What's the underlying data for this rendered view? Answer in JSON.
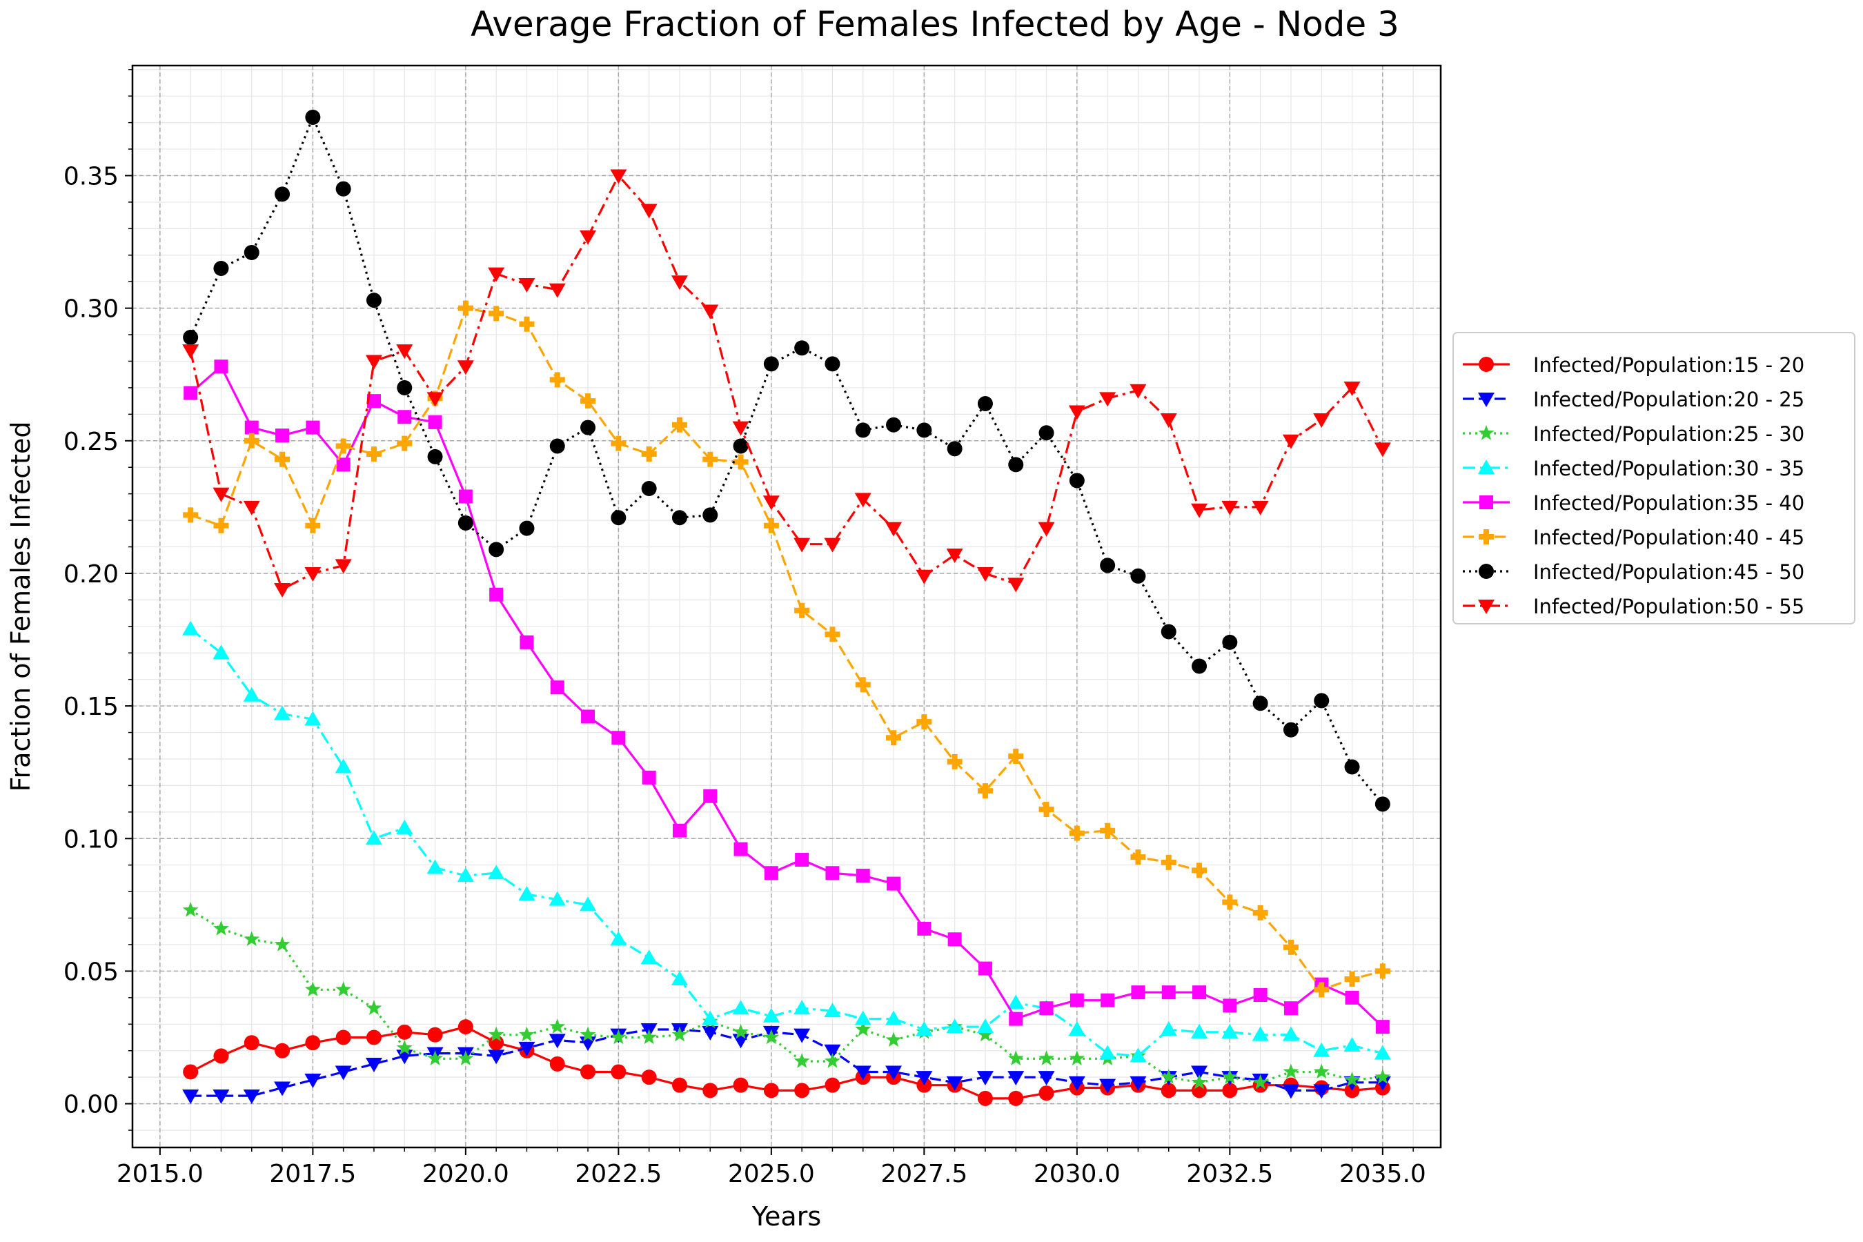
{
  "chart_data": {
    "type": "line",
    "title": "Average Fraction of Females Infected by Age - Node 3",
    "xlabel": "Years",
    "ylabel": "Fraction of Females Infected",
    "xlim": [
      2014.55,
      2035.95
    ],
    "ylim": [
      -0.0165,
      0.3915
    ],
    "xticks": [
      2015.0,
      2017.5,
      2020.0,
      2022.5,
      2025.0,
      2027.5,
      2030.0,
      2032.5,
      2035.0
    ],
    "xtick_labels": [
      "2015.0",
      "2017.5",
      "2020.0",
      "2022.5",
      "2025.0",
      "2027.5",
      "2030.0",
      "2032.5",
      "2035.0"
    ],
    "yticks": [
      0.0,
      0.05,
      0.1,
      0.15,
      0.2,
      0.25,
      0.3,
      0.35
    ],
    "ytick_labels": [
      "0.00",
      "0.05",
      "0.10",
      "0.15",
      "0.20",
      "0.25",
      "0.30",
      "0.35"
    ],
    "grid": true,
    "legend_position": "outside-right",
    "x": [
      2015.5,
      2016.0,
      2016.5,
      2017.0,
      2017.5,
      2018.0,
      2018.5,
      2019.0,
      2019.5,
      2020.0,
      2020.5,
      2021.0,
      2021.5,
      2022.0,
      2022.5,
      2023.0,
      2023.5,
      2024.0,
      2024.5,
      2025.0,
      2025.5,
      2026.0,
      2026.5,
      2027.0,
      2027.5,
      2028.0,
      2028.5,
      2029.0,
      2029.5,
      2030.0,
      2030.5,
      2031.0,
      2031.5,
      2032.0,
      2032.5,
      2033.0,
      2033.5,
      2034.0,
      2034.5,
      2035.0
    ],
    "series": [
      {
        "name": "Infected/Population:15 - 20",
        "color": "#ff0000",
        "marker": "circle",
        "dash": "solid",
        "values": [
          0.012,
          0.018,
          0.023,
          0.02,
          0.023,
          0.025,
          0.025,
          0.027,
          0.026,
          0.029,
          0.023,
          0.02,
          0.015,
          0.012,
          0.012,
          0.01,
          0.007,
          0.005,
          0.007,
          0.005,
          0.005,
          0.007,
          0.01,
          0.01,
          0.007,
          0.007,
          0.002,
          0.002,
          0.004,
          0.006,
          0.006,
          0.007,
          0.005,
          0.005,
          0.005,
          0.007,
          0.007,
          0.006,
          0.005,
          0.006
        ]
      },
      {
        "name": "Infected/Population:20 - 25",
        "color": "#0000ff",
        "marker": "triangle-down",
        "dash": "dashed",
        "values": [
          0.003,
          0.003,
          0.003,
          0.006,
          0.009,
          0.012,
          0.015,
          0.018,
          0.019,
          0.019,
          0.018,
          0.021,
          0.024,
          0.023,
          0.026,
          0.028,
          0.028,
          0.027,
          0.024,
          0.027,
          0.026,
          0.02,
          0.012,
          0.012,
          0.01,
          0.008,
          0.01,
          0.01,
          0.01,
          0.008,
          0.007,
          0.008,
          0.01,
          0.012,
          0.01,
          0.009,
          0.005,
          0.005,
          0.008,
          0.008
        ]
      },
      {
        "name": "Infected/Population:25 - 30",
        "color": "#32cd32",
        "marker": "star",
        "dash": "dotted",
        "values": [
          0.073,
          0.066,
          0.062,
          0.06,
          0.043,
          0.043,
          0.036,
          0.021,
          0.017,
          0.017,
          0.026,
          0.026,
          0.029,
          0.026,
          0.025,
          0.025,
          0.026,
          0.031,
          0.027,
          0.025,
          0.016,
          0.016,
          0.028,
          0.024,
          0.027,
          0.029,
          0.026,
          0.017,
          0.017,
          0.017,
          0.017,
          0.018,
          0.01,
          0.008,
          0.01,
          0.008,
          0.012,
          0.012,
          0.009,
          0.01
        ]
      },
      {
        "name": "Infected/Population:30 - 35",
        "color": "#00ffff",
        "marker": "triangle-up",
        "dash": "dashdot",
        "values": [
          0.179,
          0.17,
          0.154,
          0.147,
          0.145,
          0.127,
          0.1,
          0.104,
          0.089,
          0.086,
          0.087,
          0.079,
          0.077,
          0.075,
          0.062,
          0.055,
          0.047,
          0.032,
          0.036,
          0.033,
          0.036,
          0.035,
          0.032,
          0.032,
          0.028,
          0.029,
          0.029,
          0.038,
          0.036,
          0.028,
          0.019,
          0.018,
          0.028,
          0.027,
          0.027,
          0.026,
          0.026,
          0.02,
          0.022,
          0.019
        ]
      },
      {
        "name": "Infected/Population:35 - 40",
        "color": "#ff00ff",
        "marker": "square",
        "dash": "solid",
        "values": [
          0.268,
          0.278,
          0.255,
          0.252,
          0.255,
          0.241,
          0.265,
          0.259,
          0.257,
          0.229,
          0.192,
          0.174,
          0.157,
          0.146,
          0.138,
          0.123,
          0.103,
          0.116,
          0.096,
          0.087,
          0.092,
          0.087,
          0.086,
          0.083,
          0.066,
          0.062,
          0.051,
          0.032,
          0.036,
          0.039,
          0.039,
          0.042,
          0.042,
          0.042,
          0.037,
          0.041,
          0.036,
          0.045,
          0.04,
          0.029
        ]
      },
      {
        "name": "Infected/Population:40 - 45",
        "color": "#ffa500",
        "marker": "plus",
        "dash": "dashed",
        "values": [
          0.222,
          0.218,
          0.25,
          0.243,
          0.218,
          0.248,
          0.245,
          0.249,
          0.266,
          0.3,
          0.298,
          0.294,
          0.273,
          0.265,
          0.249,
          0.245,
          0.256,
          0.243,
          0.242,
          0.218,
          0.186,
          0.177,
          0.158,
          0.138,
          0.144,
          0.129,
          0.118,
          0.131,
          0.111,
          0.102,
          0.103,
          0.093,
          0.091,
          0.088,
          0.076,
          0.072,
          0.059,
          0.043,
          0.047,
          0.05
        ]
      },
      {
        "name": "Infected/Population:45 - 50",
        "color": "#000000",
        "marker": "circle",
        "dash": "dotted",
        "values": [
          0.289,
          0.315,
          0.321,
          0.343,
          0.372,
          0.345,
          0.303,
          0.27,
          0.244,
          0.219,
          0.209,
          0.217,
          0.248,
          0.255,
          0.221,
          0.232,
          0.221,
          0.222,
          0.248,
          0.279,
          0.285,
          0.279,
          0.254,
          0.256,
          0.254,
          0.247,
          0.264,
          0.241,
          0.253,
          0.235,
          0.203,
          0.199,
          0.178,
          0.165,
          0.174,
          0.151,
          0.141,
          0.152,
          0.127,
          0.113
        ]
      },
      {
        "name": "Infected/Population:50 - 55",
        "color": "#ff0000",
        "marker": "triangle-down",
        "dash": "dashdot",
        "values": [
          0.284,
          0.23,
          0.225,
          0.194,
          0.2,
          0.203,
          0.28,
          0.284,
          0.266,
          0.278,
          0.313,
          0.309,
          0.307,
          0.327,
          0.35,
          0.337,
          0.31,
          0.299,
          0.255,
          0.227,
          0.211,
          0.211,
          0.228,
          0.217,
          0.199,
          0.207,
          0.2,
          0.196,
          0.217,
          0.261,
          0.266,
          0.269,
          0.258,
          0.224,
          0.225,
          0.225,
          0.25,
          0.258,
          0.27,
          0.247
        ]
      }
    ]
  }
}
